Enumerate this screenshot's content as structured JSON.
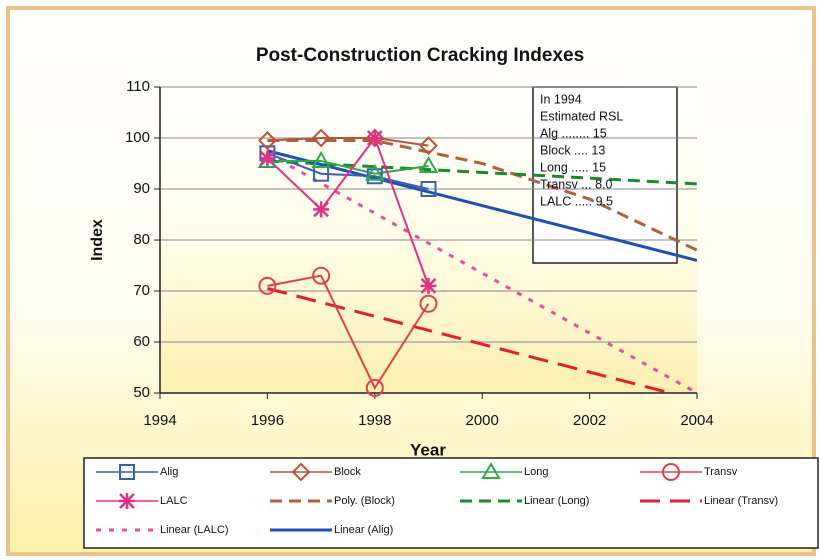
{
  "chart_data": {
    "type": "line",
    "title": "Post-Construction Cracking Indexes",
    "x_label": "Year",
    "y_label": "Index",
    "xlim": [
      1994,
      2004
    ],
    "xticks": [
      1994,
      1996,
      1998,
      2000,
      2002,
      2004
    ],
    "ylim": [
      50,
      110
    ],
    "yticks": [
      50,
      60,
      70,
      80,
      90,
      100,
      110
    ],
    "grid": true,
    "legend": "bottom",
    "annotation": [
      "In 1994",
      "Estimated RSL",
      "Alg ........ 15",
      "Block .... 13",
      "Long ..... 15",
      "Transv ... 8.0",
      "LALC ..... 9.5"
    ],
    "series": [
      {
        "name": "Alig",
        "color": "#3a5fb0",
        "marker": "square",
        "dash": "solid",
        "x": [
          1996,
          1997,
          1998,
          1999
        ],
        "values": [
          97,
          93,
          92.5,
          90
        ]
      },
      {
        "name": "Block",
        "color": "#b5533c",
        "marker": "diamond",
        "dash": "solid",
        "x": [
          1996,
          1997,
          1998,
          1999
        ],
        "values": [
          99.5,
          100,
          100,
          98.5
        ]
      },
      {
        "name": "Long",
        "color": "#2ea84a",
        "marker": "triangle",
        "dash": "solid",
        "x": [
          1996,
          1997,
          1998,
          1999
        ],
        "values": [
          95.5,
          95.5,
          93,
          94.5
        ]
      },
      {
        "name": "Transv",
        "color": "#e0404a",
        "marker": "circle",
        "dash": "solid",
        "x": [
          1996,
          1997,
          1998,
          1999
        ],
        "values": [
          71,
          73,
          51,
          67.5
        ]
      },
      {
        "name": "LALC",
        "color": "#e0308a",
        "marker": "asterisk",
        "dash": "solid",
        "x": [
          1996,
          1997,
          1998,
          1999
        ],
        "values": [
          96,
          86,
          100,
          71
        ]
      },
      {
        "name": "Poly. (Block)",
        "color": "#b06040",
        "marker": "none",
        "dash": "dash",
        "x": [
          1996,
          1998,
          2000,
          2002,
          2004
        ],
        "values": [
          99.5,
          99.5,
          95,
          88,
          78
        ]
      },
      {
        "name": "Linear (Long)",
        "color": "#1a8a30",
        "marker": "none",
        "dash": "dash",
        "x": [
          1996,
          2004
        ],
        "values": [
          95.5,
          91
        ]
      },
      {
        "name": "Linear (Transv)",
        "color": "#e02030",
        "marker": "none",
        "dash": "longdash",
        "x": [
          1996,
          2003.5
        ],
        "values": [
          70.5,
          50
        ]
      },
      {
        "name": "Linear (LALC)",
        "color": "#e050a0",
        "marker": "none",
        "dash": "dot",
        "x": [
          1996,
          2004
        ],
        "values": [
          97,
          50
        ]
      },
      {
        "name": "Linear (Alig)",
        "color": "#2050b0",
        "marker": "none",
        "dash": "solid",
        "x": [
          1996,
          2004
        ],
        "values": [
          97.5,
          76
        ]
      }
    ]
  }
}
